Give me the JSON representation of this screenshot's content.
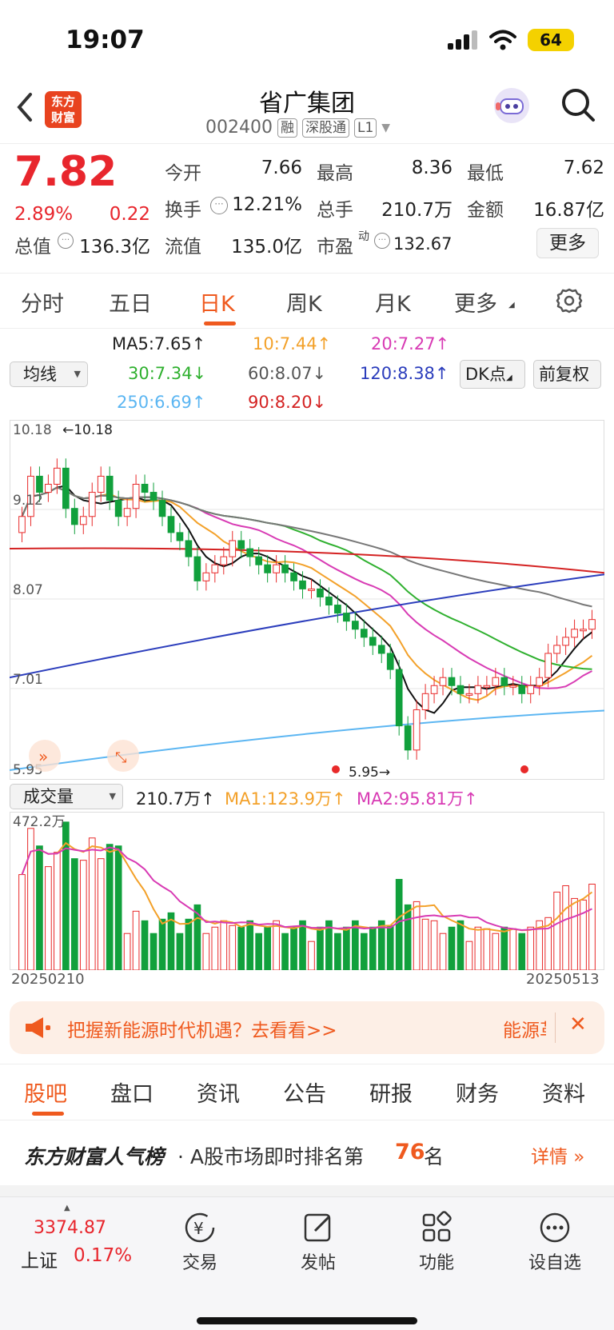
{
  "status": {
    "time": "19:07",
    "battery": "64"
  },
  "header": {
    "logo": [
      "东方",
      "财富"
    ],
    "title": "省广集团",
    "code": "002400",
    "tags": [
      "融",
      "深股通",
      "L1"
    ]
  },
  "quote": {
    "price": "7.82",
    "change_pct": "2.89%",
    "change": "0.22",
    "rows": [
      [
        {
          "label": "今开",
          "value": "7.66",
          "color": "red"
        },
        {
          "label": "最高",
          "value": "8.36",
          "color": "red"
        },
        {
          "label": "最低",
          "value": "7.62",
          "color": "red"
        }
      ],
      [
        {
          "label": "换手",
          "value": "12.21%",
          "color": "dark"
        },
        {
          "label": "总手",
          "value": "210.7万",
          "color": "dark"
        },
        {
          "label": "金额",
          "value": "16.87亿",
          "color": "dark"
        }
      ]
    ],
    "cap_label": "总值",
    "cap_value": "136.3亿",
    "float_label": "流值",
    "float_value": "135.0亿",
    "pe_label": "市盈",
    "pe_sup": "动",
    "pe_value": "132.67",
    "more": "更多"
  },
  "tabs": [
    "分时",
    "五日",
    "日K",
    "周K",
    "月K",
    "更多"
  ],
  "active_tab": "日K",
  "ma_labels": {
    "ma5": "MA5:7.65↑",
    "ma10": "10:7.44↑",
    "ma20": "20:7.27↑",
    "ma30": "30:7.34↓",
    "ma60": "60:8.07↓",
    "ma120": "120:8.38↑",
    "ma250": "250:6.69↑",
    "ma90": "90:8.20↓",
    "select": "均线",
    "dk": "DK点",
    "fq": "前复权"
  },
  "chart_data": {
    "type": "candlestick",
    "y_ticks": [
      "10.18",
      "9.12",
      "8.07",
      "7.01",
      "5.95"
    ],
    "high_marker": "←10.18",
    "low_marker": "5.95→",
    "close_series": [
      9.1,
      9.6,
      9.4,
      9.5,
      9.7,
      9.2,
      9.0,
      9.1,
      9.4,
      9.6,
      9.3,
      9.1,
      9.2,
      9.5,
      9.4,
      9.3,
      9.1,
      8.9,
      8.8,
      8.6,
      8.3,
      8.4,
      8.5,
      8.6,
      8.8,
      8.7,
      8.6,
      8.5,
      8.4,
      8.5,
      8.4,
      8.3,
      8.2,
      8.2,
      8.1,
      8.0,
      7.9,
      7.8,
      7.7,
      7.6,
      7.5,
      7.4,
      7.2,
      6.5,
      6.2,
      6.7,
      6.9,
      7.0,
      7.1,
      7.0,
      6.9,
      6.9,
      7.0,
      7.0,
      7.1,
      7.0,
      7.0,
      6.9,
      7.0,
      7.1,
      7.4,
      7.5,
      7.6,
      7.7,
      7.7,
      7.82
    ],
    "volume": {
      "label": "成交量",
      "value": "210.7万↑",
      "ma1": "MA1:123.9万↑",
      "ma2": "MA2:95.81万↑",
      "max": "472.2万",
      "start_date": "20250210",
      "end_date": "20250513"
    }
  },
  "banner": {
    "text": "把握新能源时代机遇？去看看>>",
    "tag": "能源革"
  },
  "bottom_tabs": [
    "股吧",
    "盘口",
    "资讯",
    "公告",
    "研报",
    "财务",
    "资料"
  ],
  "rank": {
    "brand": "东方财富人气榜",
    "text": "· A股市场即时排名第",
    "num": "76",
    "suffix": "名",
    "detail": "详情 »"
  },
  "toolbar": {
    "index_value": "3374.87",
    "index_name": "上证",
    "index_pct": "0.17%",
    "items": [
      "交易",
      "发帖",
      "功能",
      "设自选"
    ]
  }
}
